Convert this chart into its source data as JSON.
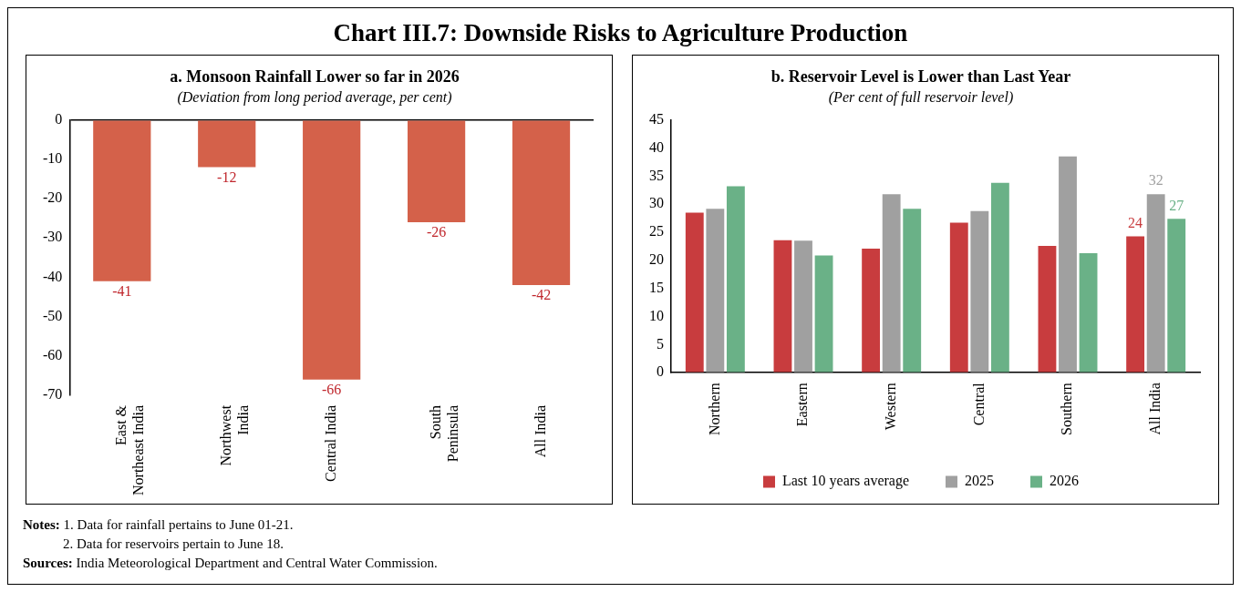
{
  "chart_data": [
    {
      "type": "bar",
      "title": "a. Monsoon Rainfall Lower so far in 2026",
      "subtitle": "(Deviation from long period average, per cent)",
      "annotations": [
        "Chart III.7: Downside Risks to Agriculture Production"
      ],
      "categories": [
        "East & Northeast India",
        "Northwest India",
        "Central India",
        "South Peninsula",
        "All India"
      ],
      "values": [
        -41,
        -12,
        -66,
        -26,
        -42
      ],
      "color": "#d4614a",
      "data_labels": true,
      "ylim": [
        -70,
        0
      ],
      "yticks": [
        0,
        -10,
        -20,
        -30,
        -40,
        -50,
        -60,
        -70
      ],
      "grid": false,
      "legend": false
    },
    {
      "type": "bar",
      "title": "b. Reservoir Level is Lower than Last Year",
      "subtitle": "(Per cent of full reservoir level)",
      "annotations": [
        "Notes: 1. Data for rainfall pertains to June 01-21.",
        "2. Data for reservoirs pertain to June 18.",
        "Sources: India Meteorological Department and Central Water Commission."
      ],
      "categories": [
        "Northern",
        "Eastern",
        "Western",
        "Central",
        "Southern",
        "All India"
      ],
      "series": [
        {
          "name": "Last 10 years average",
          "color": "#c83c3e",
          "values": [
            28.5,
            23.6,
            22.1,
            26.7,
            22.6,
            24.3
          ],
          "value_labels": [
            null,
            null,
            null,
            null,
            null,
            "24"
          ]
        },
        {
          "name": "2025",
          "color": "#a0a0a0",
          "values": [
            29.2,
            23.5,
            31.8,
            28.8,
            38.5,
            31.8
          ],
          "value_labels": [
            null,
            null,
            null,
            null,
            null,
            "32"
          ]
        },
        {
          "name": "2026",
          "color": "#6ab187",
          "values": [
            33.2,
            20.9,
            29.2,
            33.8,
            21.3,
            27.4
          ],
          "value_labels": [
            null,
            null,
            null,
            null,
            null,
            "27"
          ]
        }
      ],
      "ylim": [
        0,
        45
      ],
      "yticks": [
        0,
        5,
        10,
        15,
        20,
        25,
        30,
        35,
        40,
        45
      ],
      "grid": false,
      "legend": "bottom"
    }
  ]
}
